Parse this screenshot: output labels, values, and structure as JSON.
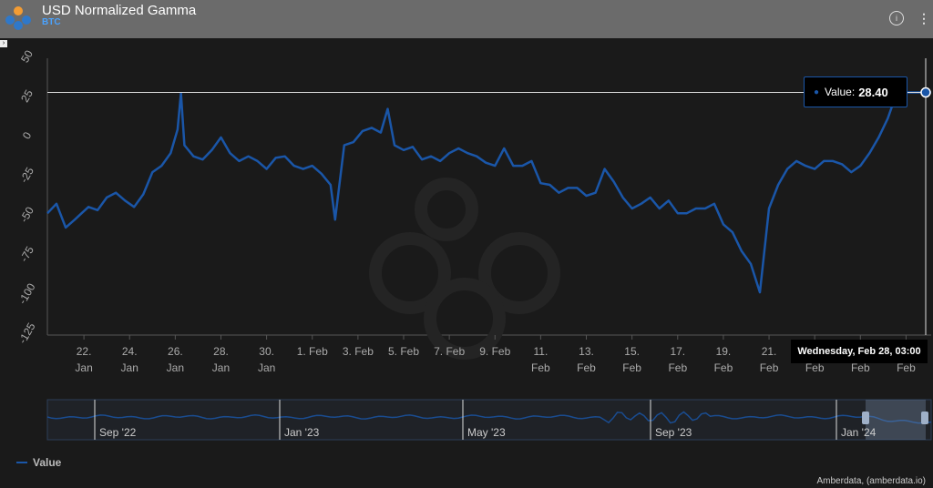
{
  "header": {
    "title": "USD Normalized Gamma",
    "subtitle": "BTC",
    "info_icon": "info-icon",
    "more_icon": "more-vertical-icon",
    "expand_icon": "chevron-right-icon"
  },
  "colors": {
    "line": "#1a56a8",
    "background": "#1a1a1a",
    "header": "#6b6b6b"
  },
  "chart_data": {
    "type": "line",
    "title": "USD Normalized Gamma",
    "ylim": [
      -125,
      50
    ],
    "y_ticks": [
      50,
      25,
      0,
      -25,
      -50,
      -75,
      -100,
      -125
    ],
    "x_ticks": [
      {
        "line1": "22.",
        "line2": "Jan"
      },
      {
        "line1": "24.",
        "line2": "Jan"
      },
      {
        "line1": "26.",
        "line2": "Jan"
      },
      {
        "line1": "28.",
        "line2": "Jan"
      },
      {
        "line1": "30.",
        "line2": "Jan"
      },
      {
        "line1": "1. Feb",
        "line2": ""
      },
      {
        "line1": "3. Feb",
        "line2": ""
      },
      {
        "line1": "5. Feb",
        "line2": ""
      },
      {
        "line1": "7. Feb",
        "line2": ""
      },
      {
        "line1": "9. Feb",
        "line2": ""
      },
      {
        "line1": "11.",
        "line2": "Feb"
      },
      {
        "line1": "13.",
        "line2": "Feb"
      },
      {
        "line1": "15.",
        "line2": "Feb"
      },
      {
        "line1": "17.",
        "line2": "Feb"
      },
      {
        "line1": "19.",
        "line2": "Feb"
      },
      {
        "line1": "21.",
        "line2": "Feb"
      },
      {
        "line1": "23.",
        "line2": "Feb"
      },
      {
        "line1": "25.",
        "line2": "Feb"
      },
      {
        "line1": "27.",
        "line2": "Feb"
      }
    ],
    "x_start_day": 20.4,
    "x_end_day": 59.1,
    "series": [
      {
        "name": "Value",
        "x": [
          20.4,
          20.8,
          21.2,
          21.6,
          21.9,
          22.2,
          22.6,
          23.0,
          23.4,
          23.8,
          24.2,
          24.6,
          25.0,
          25.4,
          25.8,
          26.1,
          26.25,
          26.4,
          26.8,
          27.2,
          27.6,
          28.0,
          28.4,
          28.8,
          29.2,
          29.6,
          30.0,
          30.4,
          30.8,
          31.2,
          31.6,
          32.0,
          32.4,
          32.8,
          33.0,
          33.4,
          33.8,
          34.2,
          34.6,
          35.0,
          35.3,
          35.6,
          36.0,
          36.4,
          36.8,
          37.2,
          37.6,
          38.0,
          38.4,
          38.8,
          39.2,
          39.6,
          40.0,
          40.4,
          40.8,
          41.2,
          41.6,
          42.0,
          42.4,
          42.8,
          43.2,
          43.6,
          44.0,
          44.4,
          44.8,
          45.2,
          45.6,
          46.0,
          46.4,
          46.8,
          47.2,
          47.6,
          48.0,
          48.4,
          48.8,
          49.2,
          49.6,
          50.0,
          50.4,
          50.8,
          51.2,
          51.6,
          52.0,
          52.4,
          52.8,
          53.2,
          53.6,
          54.0,
          54.4,
          54.8,
          55.2,
          55.6,
          56.0,
          56.4,
          56.8,
          57.2,
          57.6,
          58.0,
          58.4,
          58.8,
          59.1
        ],
        "values": [
          -48,
          -42,
          -57,
          -52,
          -48,
          -44,
          -46,
          -38,
          -35,
          -40,
          -44,
          -36,
          -22,
          -18,
          -10,
          5,
          28,
          -5,
          -12,
          -14,
          -8,
          0,
          -10,
          -15,
          -12,
          -15,
          -20,
          -13,
          -12,
          -18,
          -20,
          -18,
          -23,
          -30,
          -52,
          -5,
          -3,
          4,
          6,
          3,
          18,
          -5,
          -8,
          -6,
          -14,
          -12,
          -15,
          -10,
          -7,
          -10,
          -12,
          -16,
          -18,
          -7,
          -18,
          -18,
          -15,
          -29,
          -30,
          -35,
          -32,
          -32,
          -37,
          -35,
          -20,
          -28,
          -38,
          -45,
          -42,
          -38,
          -45,
          -40,
          -48,
          -48,
          -45,
          -45,
          -42,
          -55,
          -60,
          -72,
          -80,
          -98,
          -45,
          -30,
          -20,
          -15,
          -18,
          -20,
          -15,
          -15,
          -17,
          -22,
          -18,
          -10,
          0,
          12,
          28.4,
          28.4,
          28.4,
          28.4,
          28.4
        ]
      }
    ],
    "tooltip": {
      "label": "Value:",
      "value": "28.40",
      "date": "Wednesday, Feb 28, 03:00"
    },
    "navigator": {
      "labels": [
        "Sep '22",
        "Jan '23",
        "May '23",
        "Sep '23",
        "Jan '24"
      ]
    },
    "legend": {
      "label": "Value",
      "position": "bottom-left"
    },
    "credit": "Amberdata, (amberdata.io)"
  }
}
